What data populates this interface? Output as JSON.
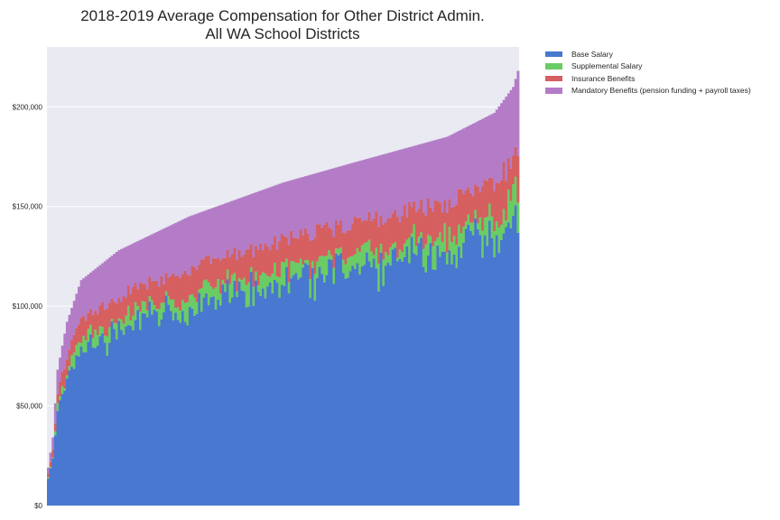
{
  "chart_data": {
    "type": "bar",
    "stacked": true,
    "title_lines": [
      "2018-2019 Average Compensation for Other District Admin.",
      "All WA School Districts"
    ],
    "xlabel": "",
    "ylabel": "",
    "ylim": [
      0,
      230000
    ],
    "y_ticks": [
      0,
      50000,
      100000,
      150000,
      200000
    ],
    "y_tick_labels": [
      "$0",
      "$50,000",
      "$100,000",
      "$150,000",
      "$200,000"
    ],
    "grid": true,
    "legend_position": "outside-top-right",
    "n_districts": 200,
    "totals_range": [
      19000,
      218000
    ],
    "series": [
      {
        "name": "Base Salary",
        "color": "#4878d0",
        "typical_share_of_total": 0.7
      },
      {
        "name": "Supplemental Salary",
        "color": "#6acc64",
        "typical_share_of_total": 0.03
      },
      {
        "name": "Insurance Benefits",
        "color": "#d65f5f",
        "typical_share_of_total": 0.09
      },
      {
        "name": "Mandatory Benefits (pension funding + payroll taxes)",
        "color": "#b47cc7",
        "typical_share_of_total": 0.18
      }
    ],
    "sorted_by": "total ascending"
  },
  "colors": {
    "plot_background": "#eaeaf2",
    "grid": "#ffffff"
  }
}
